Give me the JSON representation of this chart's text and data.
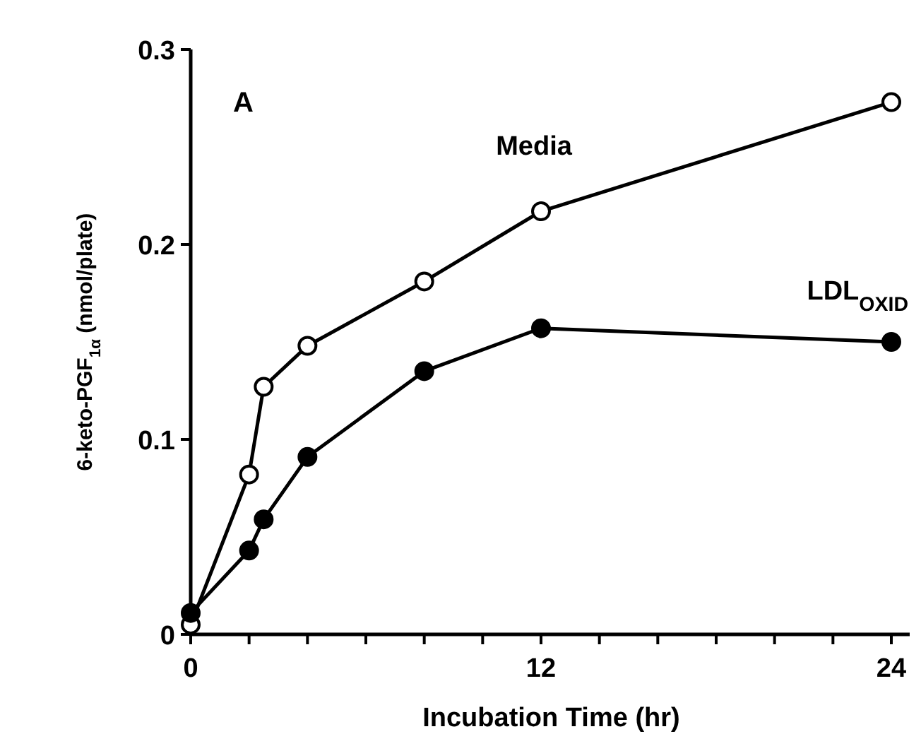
{
  "chart_data": {
    "type": "line",
    "xlabel": "Incubation Time (hr)",
    "ylabel": "6-keto-PGF$_{1α}$ (nmol/plate)",
    "annotations": [
      "A"
    ],
    "xlim": [
      0,
      24.7
    ],
    "xticks": [
      0,
      {
        "value": 2,
        "label": null
      },
      {
        "value": 4,
        "label": null
      },
      {
        "value": 6,
        "label": null
      },
      {
        "value": 8,
        "label": null
      },
      {
        "value": 10,
        "label": null
      },
      12,
      {
        "value": 14,
        "label": null
      },
      {
        "value": 16,
        "label": null
      },
      {
        "value": 18,
        "label": null
      },
      {
        "value": 20,
        "label": null
      },
      {
        "value": 22,
        "label": null
      },
      24
    ],
    "ylim": [
      0,
      0.3
    ],
    "yticks": [
      0,
      0.1,
      0.2,
      0.3
    ],
    "grid": false,
    "marker": "circle",
    "line_style": "solid",
    "x": [
      0,
      2,
      2.5,
      4,
      8,
      12,
      24
    ],
    "series": [
      {
        "name": "Media",
        "color": "#000000",
        "values": [
          0.005,
          0.082,
          0.127,
          0.148,
          0.181,
          0.217,
          0.273
        ]
      },
      {
        "name": "LDL$_{OXID}$",
        "color": "#000000",
        "values": [
          0.011,
          0.043,
          0.059,
          0.091,
          0.135,
          0.157,
          0.15
        ]
      }
    ]
  }
}
